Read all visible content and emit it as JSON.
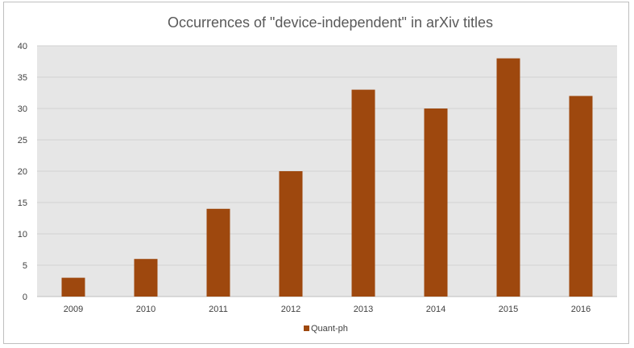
{
  "chart_data": {
    "type": "bar",
    "title": "Occurrences of \"device-independent\" in arXiv titles",
    "xlabel": "",
    "ylabel": "",
    "categories": [
      "2009",
      "2010",
      "2011",
      "2012",
      "2013",
      "2014",
      "2015",
      "2016"
    ],
    "series": [
      {
        "name": "Quant-ph",
        "color": "#9e480e",
        "values": [
          3,
          6,
          14,
          20,
          33,
          30,
          38,
          32
        ]
      }
    ],
    "ylim": [
      0,
      40
    ],
    "yticks": [
      "0",
      "5",
      "10",
      "15",
      "20",
      "25",
      "30",
      "35",
      "40"
    ],
    "grid": true,
    "legend": "bottom",
    "plot_background": "#e6e6e6"
  }
}
